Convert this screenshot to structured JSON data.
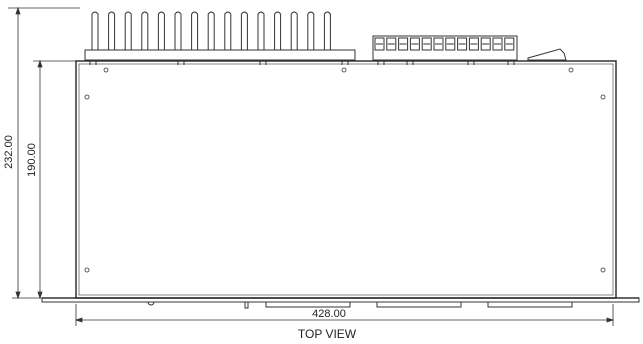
{
  "drawing": {
    "view_label": "TOP VIEW",
    "dimensions": {
      "overall_depth": "232.00",
      "body_depth": "190.00",
      "width": "428.00"
    }
  }
}
